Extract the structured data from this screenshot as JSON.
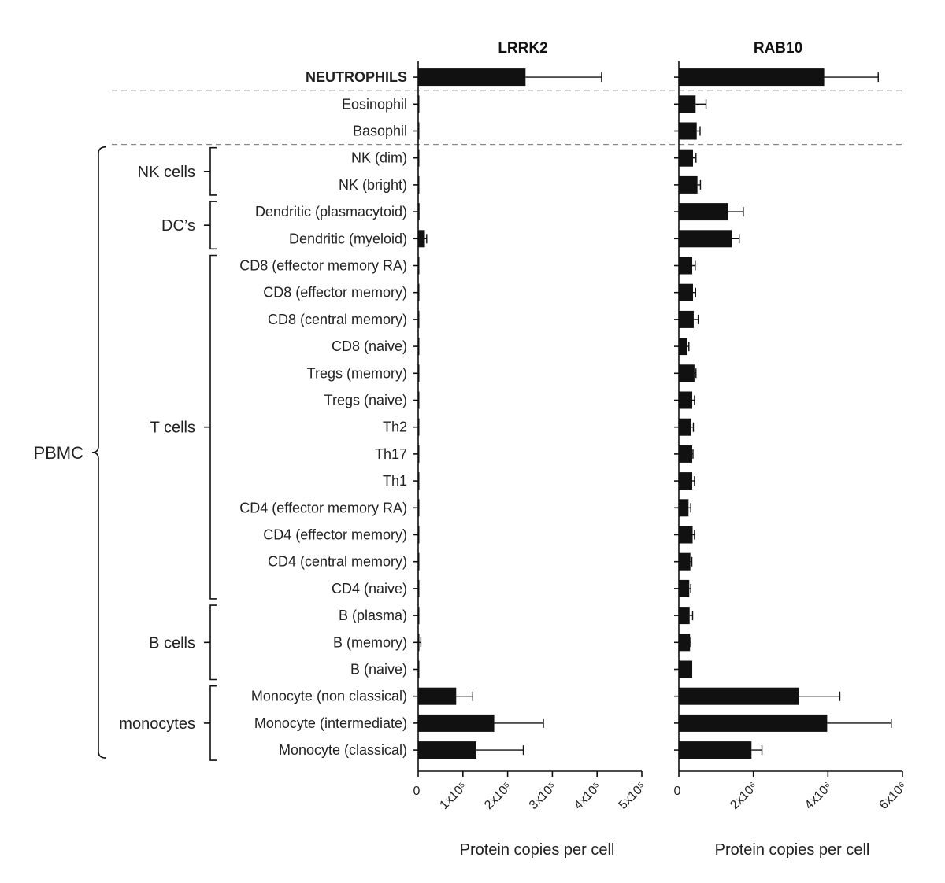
{
  "chart_data": {
    "type": "bar",
    "orientation": "horizontal",
    "categories": [
      "NEUTROPHILS",
      "Eosinophil",
      "Basophil",
      "NK (dim)",
      "NK (bright)",
      "Dendritic (plasmacytoid)",
      "Dendritic (myeloid)",
      "CD8 (effector memory RA)",
      "CD8 (effector memory)",
      "CD8 (central memory)",
      "CD8 (naive)",
      "Tregs (memory)",
      "Tregs (naive)",
      "Th2",
      "Th17",
      "Th1",
      "CD4 (effector memory RA)",
      "CD4 (effector memory)",
      "CD4 (central memory)",
      "CD4 (naive)",
      "B (plasma)",
      "B (memory)",
      "B (naive)",
      "Monocyte (non classical)",
      "Monocyte (intermediate)",
      "Monocyte (classical)"
    ],
    "highlight": {
      "category": "NEUTROPHILS",
      "color": "#1a9850"
    },
    "groups": [
      {
        "name": "NK cells",
        "members": [
          "NK (dim)",
          "NK (bright)"
        ]
      },
      {
        "name": "DC’s",
        "members": [
          "Dendritic (plasmacytoid)",
          "Dendritic (myeloid)"
        ]
      },
      {
        "name": "T cells",
        "members": [
          "CD8 (effector memory RA)",
          "CD4 (naive)"
        ]
      },
      {
        "name": "B cells",
        "members": [
          "B (plasma)",
          "B (naive)"
        ]
      },
      {
        "name": "monocytes",
        "members": [
          "Monocyte (non classical)",
          "Monocyte (classical)"
        ]
      }
    ],
    "supergroup": {
      "name": "PBMC",
      "from": "NK (dim)",
      "to": "Monocyte (classical)"
    },
    "separators_after": [
      "NEUTROPHILS",
      "Basophil"
    ],
    "panels": [
      {
        "title": "LRRK2",
        "xlabel": "Protein copies per cell",
        "xlim": [
          0,
          500000
        ],
        "ticks": [
          {
            "v": 0,
            "label": "0",
            "rotated": false
          },
          {
            "v": 100000,
            "label": "1x10⁵",
            "rotated": true
          },
          {
            "v": 200000,
            "label": "2x10⁵",
            "rotated": true
          },
          {
            "v": 300000,
            "label": "3x10⁵",
            "rotated": true
          },
          {
            "v": 400000,
            "label": "4x10⁵",
            "rotated": true
          },
          {
            "v": 500000,
            "label": "5x10⁵",
            "rotated": true
          }
        ],
        "values": [
          240000,
          1000,
          1000,
          500,
          500,
          3000,
          15000,
          500,
          500,
          500,
          500,
          500,
          500,
          500,
          500,
          500,
          500,
          500,
          500,
          500,
          500,
          2000,
          500,
          85000,
          170000,
          130000
        ],
        "errors": [
          170000,
          0,
          0,
          0,
          0,
          0,
          4000,
          0,
          0,
          0,
          0,
          0,
          0,
          0,
          0,
          0,
          0,
          0,
          0,
          0,
          0,
          4000,
          0,
          37000,
          110000,
          105000
        ]
      },
      {
        "title": "RAB10",
        "xlabel": "Protein copies per cell",
        "xlim": [
          0,
          6000000
        ],
        "ticks": [
          {
            "v": 0,
            "label": "0",
            "rotated": false
          },
          {
            "v": 2000000,
            "label": "2x10⁶",
            "rotated": true
          },
          {
            "v": 4000000,
            "label": "4x10⁶",
            "rotated": true
          },
          {
            "v": 6000000,
            "label": "6x10⁶",
            "rotated": true
          }
        ],
        "values": [
          3900000,
          450000,
          480000,
          380000,
          500000,
          1330000,
          1420000,
          360000,
          380000,
          400000,
          220000,
          420000,
          360000,
          330000,
          360000,
          360000,
          260000,
          370000,
          310000,
          280000,
          290000,
          300000,
          360000,
          3220000,
          3980000,
          1950000
        ],
        "errors": [
          1450000,
          280000,
          90000,
          80000,
          80000,
          400000,
          200000,
          80000,
          70000,
          120000,
          50000,
          40000,
          60000,
          60000,
          20000,
          60000,
          60000,
          50000,
          40000,
          40000,
          80000,
          20000,
          0,
          1100000,
          1720000,
          280000
        ]
      }
    ]
  }
}
